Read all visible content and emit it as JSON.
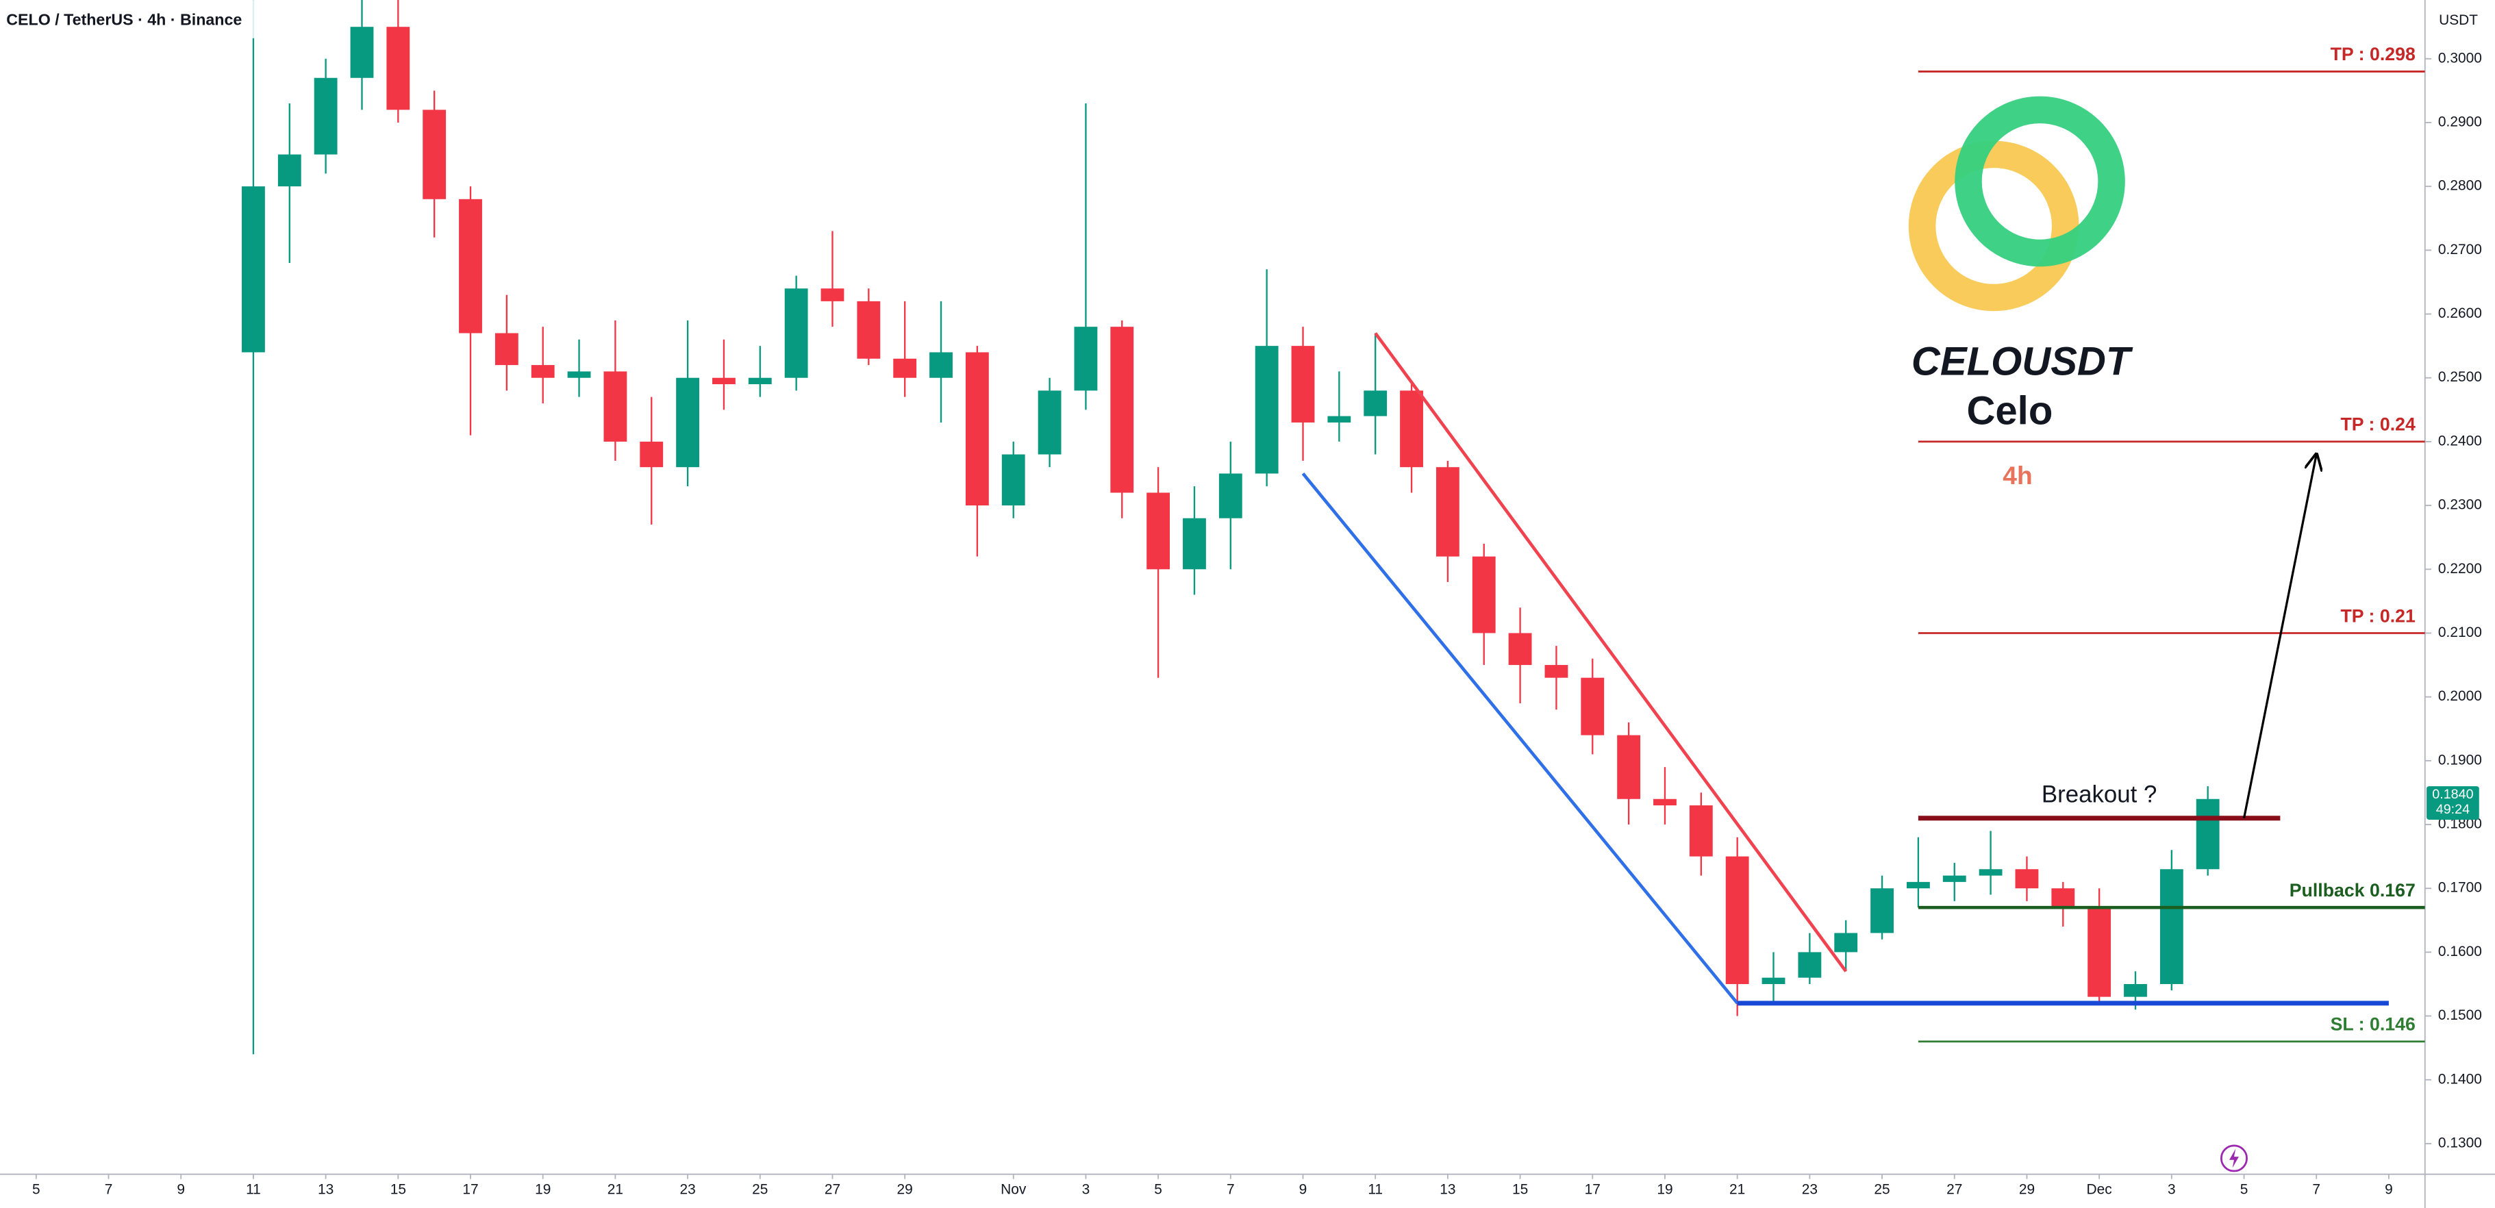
{
  "header": {
    "symbol": "CELO / TetherUS · 4h · Binance",
    "currency": "USDT",
    "countdown": "49:24"
  },
  "logo": {
    "symbol": "CELOUSDT",
    "name": "Celo",
    "interval": "4h"
  },
  "chart_data": {
    "type": "candlestick",
    "up_color": "#089981",
    "down_color": "#f23645",
    "grid": false,
    "x": [
      "10-11",
      "10-12",
      "10-13",
      "10-14",
      "10-15",
      "10-16",
      "10-17",
      "10-18",
      "10-19",
      "10-20",
      "10-21",
      "10-22",
      "10-23",
      "10-24",
      "10-25",
      "10-26",
      "10-27",
      "10-28",
      "10-29",
      "10-30",
      "10-31",
      "11-01",
      "11-02",
      "11-03",
      "11-04",
      "11-05",
      "11-06",
      "11-07",
      "11-08",
      "11-09",
      "11-10",
      "11-11",
      "11-12",
      "11-13",
      "11-14",
      "11-15",
      "11-16",
      "11-17",
      "11-18",
      "11-19",
      "11-20",
      "11-21",
      "11-22",
      "11-23",
      "11-24",
      "11-25",
      "11-26",
      "11-27",
      "11-28",
      "11-29",
      "11-30",
      "12-01",
      "12-02",
      "12-03",
      "12-04"
    ],
    "open": [
      0.254,
      0.28,
      0.285,
      0.297,
      0.305,
      0.292,
      0.278,
      0.257,
      0.252,
      0.25,
      0.251,
      0.24,
      0.236,
      0.25,
      0.249,
      0.25,
      0.264,
      0.262,
      0.253,
      0.25,
      0.254,
      0.23,
      0.238,
      0.248,
      0.258,
      0.232,
      0.22,
      0.228,
      0.235,
      0.255,
      0.243,
      0.244,
      0.248,
      0.236,
      0.222,
      0.21,
      0.205,
      0.203,
      0.194,
      0.184,
      0.183,
      0.175,
      0.155,
      0.156,
      0.16,
      0.163,
      0.17,
      0.171,
      0.172,
      0.173,
      0.17,
      0.167,
      0.153,
      0.155,
      0.173
    ],
    "high": [
      0.31,
      0.293,
      0.3,
      0.312,
      0.312,
      0.295,
      0.28,
      0.263,
      0.258,
      0.256,
      0.259,
      0.247,
      0.259,
      0.256,
      0.255,
      0.266,
      0.273,
      0.264,
      0.262,
      0.262,
      0.255,
      0.24,
      0.25,
      0.293,
      0.259,
      0.236,
      0.233,
      0.24,
      0.267,
      0.258,
      0.251,
      0.257,
      0.249,
      0.237,
      0.224,
      0.214,
      0.208,
      0.206,
      0.196,
      0.189,
      0.185,
      0.178,
      0.16,
      0.163,
      0.165,
      0.172,
      0.178,
      0.174,
      0.179,
      0.175,
      0.171,
      0.17,
      0.157,
      0.176,
      0.186
    ],
    "low": [
      0.144,
      0.268,
      0.282,
      0.292,
      0.29,
      0.272,
      0.241,
      0.248,
      0.246,
      0.247,
      0.237,
      0.227,
      0.233,
      0.245,
      0.247,
      0.248,
      0.258,
      0.252,
      0.247,
      0.243,
      0.222,
      0.228,
      0.236,
      0.245,
      0.228,
      0.203,
      0.216,
      0.22,
      0.233,
      0.237,
      0.24,
      0.238,
      0.232,
      0.218,
      0.205,
      0.199,
      0.198,
      0.191,
      0.18,
      0.18,
      0.172,
      0.15,
      0.152,
      0.155,
      0.157,
      0.162,
      0.167,
      0.168,
      0.169,
      0.168,
      0.164,
      0.152,
      0.151,
      0.154,
      0.172
    ],
    "close": [
      0.28,
      0.285,
      0.297,
      0.305,
      0.292,
      0.278,
      0.257,
      0.252,
      0.25,
      0.251,
      0.24,
      0.236,
      0.25,
      0.249,
      0.25,
      0.264,
      0.262,
      0.253,
      0.25,
      0.254,
      0.23,
      0.238,
      0.248,
      0.258,
      0.232,
      0.22,
      0.228,
      0.235,
      0.255,
      0.243,
      0.244,
      0.248,
      0.236,
      0.222,
      0.21,
      0.205,
      0.203,
      0.194,
      0.184,
      0.183,
      0.175,
      0.155,
      0.156,
      0.16,
      0.163,
      0.17,
      0.171,
      0.172,
      0.173,
      0.17,
      0.167,
      0.153,
      0.155,
      0.173,
      0.184
    ],
    "xlim": [
      "10-04",
      "12-10"
    ],
    "xticks": [
      {
        "value": "10-05",
        "label": "5"
      },
      {
        "value": "10-07",
        "label": "7"
      },
      {
        "value": "10-09",
        "label": "9"
      },
      {
        "value": "10-11",
        "label": "11"
      },
      {
        "value": "10-13",
        "label": "13"
      },
      {
        "value": "10-15",
        "label": "15"
      },
      {
        "value": "10-17",
        "label": "17"
      },
      {
        "value": "10-19",
        "label": "19"
      },
      {
        "value": "10-21",
        "label": "21"
      },
      {
        "value": "10-23",
        "label": "23"
      },
      {
        "value": "10-25",
        "label": "25"
      },
      {
        "value": "10-27",
        "label": "27"
      },
      {
        "value": "10-29",
        "label": "29"
      },
      {
        "value": "11-01",
        "label": "Nov"
      },
      {
        "value": "11-03",
        "label": "3"
      },
      {
        "value": "11-05",
        "label": "5"
      },
      {
        "value": "11-07",
        "label": "7"
      },
      {
        "value": "11-09",
        "label": "9"
      },
      {
        "value": "11-11",
        "label": "11"
      },
      {
        "value": "11-13",
        "label": "13"
      },
      {
        "value": "11-15",
        "label": "15"
      },
      {
        "value": "11-17",
        "label": "17"
      },
      {
        "value": "11-19",
        "label": "19"
      },
      {
        "value": "11-21",
        "label": "21"
      },
      {
        "value": "11-23",
        "label": "23"
      },
      {
        "value": "11-25",
        "label": "25"
      },
      {
        "value": "11-27",
        "label": "27"
      },
      {
        "value": "11-29",
        "label": "29"
      },
      {
        "value": "12-01",
        "label": "Dec"
      },
      {
        "value": "12-03",
        "label": "3"
      },
      {
        "value": "12-05",
        "label": "5"
      },
      {
        "value": "12-07",
        "label": "7"
      },
      {
        "value": "12-09",
        "label": "9"
      }
    ],
    "ylim": [
      0.1252,
      0.3092
    ],
    "yticks": [
      {
        "value": 0.13,
        "label": "0.1300"
      },
      {
        "value": 0.14,
        "label": "0.1400"
      },
      {
        "value": 0.15,
        "label": "0.1500"
      },
      {
        "value": 0.16,
        "label": "0.1600"
      },
      {
        "value": 0.17,
        "label": "0.1700"
      },
      {
        "value": 0.18,
        "label": "0.1800"
      },
      {
        "value": 0.19,
        "label": "0.1900"
      },
      {
        "value": 0.2,
        "label": "0.2000"
      },
      {
        "value": 0.21,
        "label": "0.2100"
      },
      {
        "value": 0.22,
        "label": "0.2200"
      },
      {
        "value": 0.23,
        "label": "0.2300"
      },
      {
        "value": 0.24,
        "label": "0.2400"
      },
      {
        "value": 0.25,
        "label": "0.2500"
      },
      {
        "value": 0.26,
        "label": "0.2600"
      },
      {
        "value": 0.27,
        "label": "0.2700"
      },
      {
        "value": 0.28,
        "label": "0.2800"
      },
      {
        "value": 0.29,
        "label": "0.2900"
      },
      {
        "value": 0.3,
        "label": "0.3000"
      }
    ],
    "last_price": {
      "value": 0.184,
      "label": "0.1840"
    },
    "levels": [
      {
        "label": "TP : 0.298",
        "value": 0.298,
        "from": "11-26",
        "color": "#c62828"
      },
      {
        "label": "TP : 0.24",
        "value": 0.24,
        "from": "11-26",
        "color": "#c62828"
      },
      {
        "label": "TP : 0.21",
        "value": 0.21,
        "from": "11-26",
        "color": "#c62828"
      },
      {
        "label": "Pullback 0.167",
        "value": 0.167,
        "from": "11-26",
        "color": "#1b5e20"
      },
      {
        "label": "SL : 0.146",
        "value": 0.146,
        "from": "11-26",
        "color": "#2e7d32"
      }
    ],
    "breakout": {
      "label": "Breakout ?",
      "value": 0.181,
      "from": "11-26",
      "to": "12-06",
      "color": "#880e1a"
    },
    "support": {
      "value": 0.152,
      "from": "11-21",
      "to": "12-09",
      "color": "#1848d6"
    },
    "trendlines": [
      {
        "color": "#f0424f",
        "points": [
          [
            "11-11",
            0.257
          ],
          [
            "11-24",
            0.157
          ]
        ]
      },
      {
        "color": "#2f6fe8",
        "points": [
          [
            "11-09",
            0.235
          ],
          [
            "11-21",
            0.152
          ]
        ]
      }
    ],
    "arrow": {
      "color": "#000000",
      "points": [
        [
          "12-05",
          0.181
        ],
        [
          "12-07",
          0.238
        ]
      ]
    }
  }
}
